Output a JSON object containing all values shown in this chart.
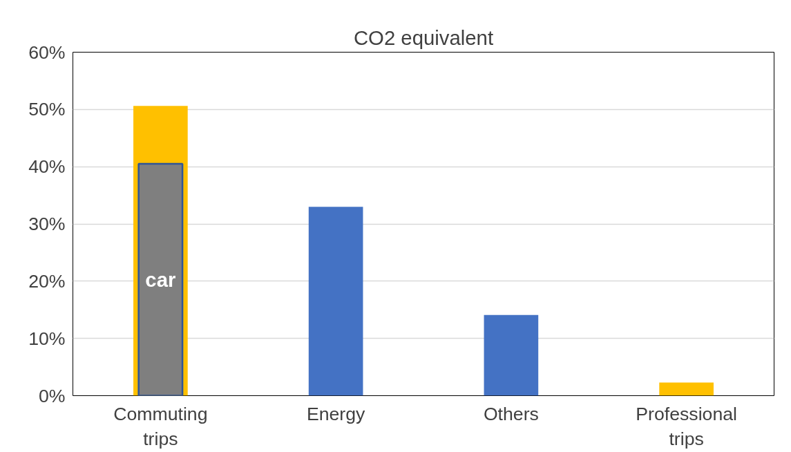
{
  "chart_data": {
    "type": "bar",
    "title": "CO2 equivalent",
    "categories": [
      "Commuting\ntrips",
      "Energy",
      "Others",
      "Professional\ntrips"
    ],
    "series": [
      {
        "colors": [
          "#ffc000",
          "#4472c4",
          "#4472c4",
          "#ffc000"
        ],
        "values": [
          50.6,
          33.0,
          14.1,
          2.3
        ]
      },
      {
        "name": "car",
        "color": "#7f7f7f",
        "values": [
          40.5,
          null,
          null,
          null
        ]
      }
    ],
    "ylim": [
      0,
      60
    ],
    "yticks": [
      {
        "value": 0,
        "label": "0%"
      },
      {
        "value": 10,
        "label": "10%"
      },
      {
        "value": 20,
        "label": "20%"
      },
      {
        "value": 30,
        "label": "30%"
      },
      {
        "value": 40,
        "label": "40%"
      },
      {
        "value": 50,
        "label": "50%"
      },
      {
        "value": 60,
        "label": "60%"
      }
    ],
    "grid": "y"
  }
}
